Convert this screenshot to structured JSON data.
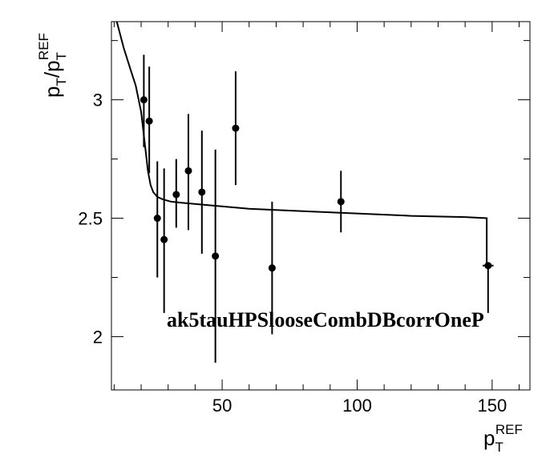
{
  "chart_data": {
    "type": "scatter",
    "xlabel": {
      "main": "p",
      "sub": "T",
      "sup": "REF"
    },
    "ylabel": {
      "p1": "p",
      "sub1": "T",
      "slash": "/p",
      "sub2": "T",
      "sup2": "REF"
    },
    "annotation": "ak5tauHPSlooseCombDBcorrOneP",
    "xlim": [
      9,
      164
    ],
    "ylim": [
      1.775,
      3.33
    ],
    "xticks": [
      50,
      100,
      150
    ],
    "xtick_labels": [
      "50",
      "100",
      "150"
    ],
    "yticks": [
      2,
      2.5,
      3
    ],
    "ytick_labels": [
      "2",
      "2.5",
      "3"
    ],
    "grid": false,
    "points": [
      {
        "x": 21.0,
        "y": 3.0,
        "ylow": 2.8,
        "yhigh": 3.19
      },
      {
        "x": 23.0,
        "y": 2.91,
        "ylow": 2.69,
        "yhigh": 3.14
      },
      {
        "x": 26.0,
        "y": 2.5,
        "ylow": 2.25,
        "yhigh": 2.74
      },
      {
        "x": 28.5,
        "y": 2.41,
        "ylow": 2.1,
        "yhigh": 2.71
      },
      {
        "x": 33.0,
        "y": 2.6,
        "ylow": 2.46,
        "yhigh": 2.75
      },
      {
        "x": 37.5,
        "y": 2.7,
        "ylow": 2.45,
        "yhigh": 2.94
      },
      {
        "x": 42.5,
        "y": 2.61,
        "ylow": 2.35,
        "yhigh": 2.87
      },
      {
        "x": 47.5,
        "y": 2.34,
        "ylow": 1.89,
        "yhigh": 2.79
      },
      {
        "x": 55.0,
        "y": 2.88,
        "ylow": 2.64,
        "yhigh": 3.12
      },
      {
        "x": 68.5,
        "y": 2.29,
        "ylow": 2.01,
        "yhigh": 2.57
      },
      {
        "x": 94.0,
        "y": 2.57,
        "ylow": 2.44,
        "yhigh": 2.7
      },
      {
        "x": 148.5,
        "y": 2.3,
        "ylow": 2.1,
        "yhigh": 2.3,
        "xlow": 146.5,
        "xhigh": 150.5
      }
    ],
    "fit_curve": {
      "x": [
        11.0,
        13.5,
        16.0,
        18.0,
        20.0,
        21.5,
        22.5,
        23.5,
        24.5,
        26.0,
        28.0,
        31.0,
        35.0,
        40.0,
        50.0,
        60.0,
        80.0,
        100.0,
        120.0,
        140.0,
        148.0
      ],
      "y": [
        3.33,
        3.22,
        3.13,
        3.06,
        2.95,
        2.8,
        2.7,
        2.64,
        2.61,
        2.59,
        2.58,
        2.57,
        2.565,
        2.56,
        2.55,
        2.54,
        2.53,
        2.52,
        2.51,
        2.505,
        2.5
      ],
      "drop_to": 2.3
    }
  }
}
